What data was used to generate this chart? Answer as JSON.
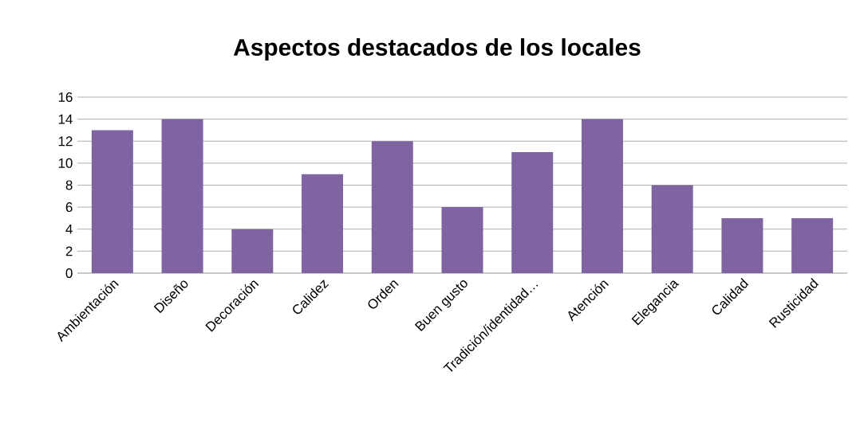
{
  "chart_data": {
    "type": "bar",
    "title": "Aspectos destacados de los locales",
    "categories": [
      "Ambientación",
      "Diseño",
      "Decoración",
      "Calidez",
      "Orden",
      "Buen gusto",
      "Tradición/identidad…",
      "Atención",
      "Elegancia",
      "Calidad",
      "Rusticidad"
    ],
    "values": [
      13,
      14,
      4,
      9,
      12,
      6,
      11,
      14,
      8,
      5,
      5
    ],
    "color": "#8064a2",
    "ylim": [
      0,
      16
    ],
    "yticks": [
      0,
      2,
      4,
      6,
      8,
      10,
      12,
      14,
      16
    ],
    "grid": "y"
  }
}
